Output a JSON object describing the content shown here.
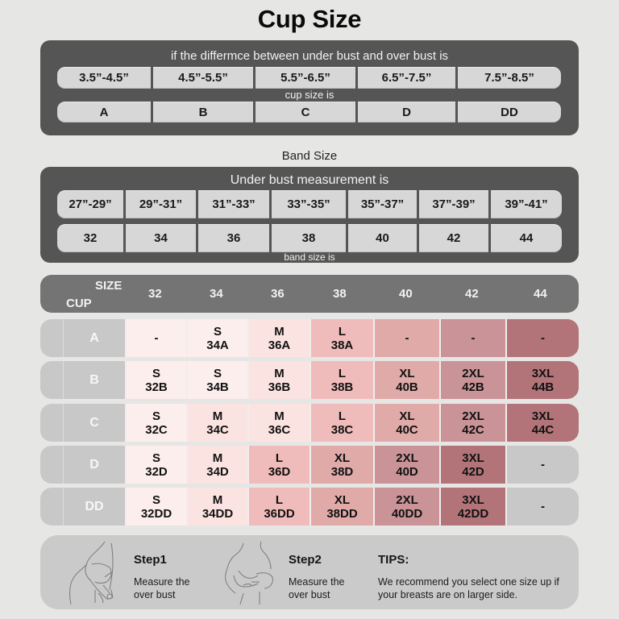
{
  "cup_section": {
    "title": "Cup Size",
    "caption_top": "if the differmce between under bust and over bust is",
    "caption_mid": "cup size is",
    "ranges": [
      "3.5”-4.5”",
      "4.5”-5.5”",
      "5.5”-6.5”",
      "6.5”-7.5”",
      "7.5”-8.5”"
    ],
    "cups": [
      "A",
      "B",
      "C",
      "D",
      "DD"
    ]
  },
  "band_section": {
    "title": "Band Size",
    "caption_top": "Under bust measurement is",
    "caption_bottom": "band size is",
    "ranges": [
      "27”-29”",
      "29”-31”",
      "31”-33”",
      "33”-35”",
      "35”-37”",
      "37”-39”",
      "39”-41”"
    ],
    "bands": [
      "32",
      "34",
      "36",
      "38",
      "40",
      "42",
      "44"
    ]
  },
  "size_matrix": {
    "header_size": "SIZE",
    "header_cup": "CUP",
    "columns": [
      "32",
      "34",
      "36",
      "38",
      "40",
      "42",
      "44"
    ],
    "rows": [
      {
        "cup": "A",
        "cells": [
          {
            "size": "-",
            "code": ""
          },
          {
            "size": "S",
            "code": "34A"
          },
          {
            "size": "M",
            "code": "36A"
          },
          {
            "size": "L",
            "code": "38A"
          },
          {
            "size": "-",
            "code": ""
          },
          {
            "size": "-",
            "code": ""
          },
          {
            "size": "-",
            "code": ""
          }
        ]
      },
      {
        "cup": "B",
        "cells": [
          {
            "size": "S",
            "code": "32B"
          },
          {
            "size": "S",
            "code": "34B"
          },
          {
            "size": "M",
            "code": "36B"
          },
          {
            "size": "L",
            "code": "38B"
          },
          {
            "size": "XL",
            "code": "40B"
          },
          {
            "size": "2XL",
            "code": "42B"
          },
          {
            "size": "3XL",
            "code": "44B"
          }
        ]
      },
      {
        "cup": "C",
        "cells": [
          {
            "size": "S",
            "code": "32C"
          },
          {
            "size": "M",
            "code": "34C"
          },
          {
            "size": "M",
            "code": "36C"
          },
          {
            "size": "L",
            "code": "38C"
          },
          {
            "size": "XL",
            "code": "40C"
          },
          {
            "size": "2XL",
            "code": "42C"
          },
          {
            "size": "3XL",
            "code": "44C"
          }
        ]
      },
      {
        "cup": "D",
        "cells": [
          {
            "size": "S",
            "code": "32D"
          },
          {
            "size": "M",
            "code": "34D"
          },
          {
            "size": "L",
            "code": "36D"
          },
          {
            "size": "XL",
            "code": "38D"
          },
          {
            "size": "2XL",
            "code": "40D"
          },
          {
            "size": "3XL",
            "code": "42D"
          },
          {
            "size": "-",
            "code": ""
          }
        ]
      },
      {
        "cup": "DD",
        "cells": [
          {
            "size": "S",
            "code": "32DD"
          },
          {
            "size": "M",
            "code": "34DD"
          },
          {
            "size": "L",
            "code": "36DD"
          },
          {
            "size": "XL",
            "code": "38DD"
          },
          {
            "size": "2XL",
            "code": "40DD"
          },
          {
            "size": "3XL",
            "code": "42DD"
          },
          {
            "size": "-",
            "code": ""
          }
        ]
      }
    ],
    "row_colors": [
      [
        "#fdeeee",
        "#fdeeee",
        "#fbe3e2",
        "#efbcbb",
        "#e0aaa8",
        "#c99397",
        "#b27479"
      ],
      [
        "#fdeeee",
        "#fdeeee",
        "#fbe3e2",
        "#efbcbb",
        "#e0aaa8",
        "#c99397",
        "#b27479"
      ],
      [
        "#fdeeee",
        "#fbe3e2",
        "#fbe3e2",
        "#efbcbb",
        "#e0aaa8",
        "#c99397",
        "#b27479"
      ],
      [
        "#fdeeee",
        "#fbe3e2",
        "#efbcbb",
        "#e0aaa8",
        "#c99397",
        "#b27479",
        "#c8c8c8"
      ],
      [
        "#fdeeee",
        "#fbe3e2",
        "#efbcbb",
        "#e0aaa8",
        "#c99397",
        "#b27479",
        "#c8c8c8"
      ]
    ]
  },
  "tips_panel": {
    "step1_title": "Step1",
    "step1_line1": "Measure the",
    "step1_line2": "over bust",
    "step2_title": "Step2",
    "step2_line1": "Measure the",
    "step2_line2": "over bust",
    "tips_title": "TIPS:",
    "tips_line1": "We recommend you select one size up if",
    "tips_line2": "your breasts are on larger side.",
    "icons": [
      "measure-over-bust-sketch",
      "measure-under-bust-sketch"
    ]
  }
}
